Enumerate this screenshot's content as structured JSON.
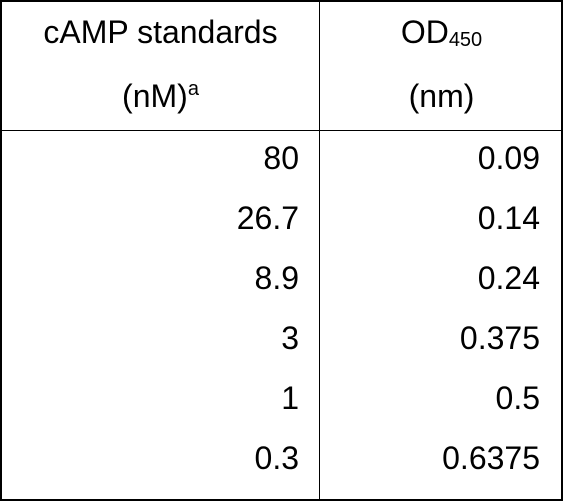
{
  "table": {
    "header": {
      "col1_line1": "cAMP standards",
      "col1_line2": "(nM)",
      "col1_sup": "a",
      "col2_line1_main": "OD",
      "col2_line1_sub": "450",
      "col2_line2": "(nm)"
    },
    "rows": [
      {
        "camp": "80",
        "od": "0.09"
      },
      {
        "camp": "26.7",
        "od": "0.14"
      },
      {
        "camp": "8.9",
        "od": "0.24"
      },
      {
        "camp": "3",
        "od": "0.375"
      },
      {
        "camp": "1",
        "od": "0.5"
      },
      {
        "camp": "0.3",
        "od": "0.6375"
      }
    ]
  }
}
